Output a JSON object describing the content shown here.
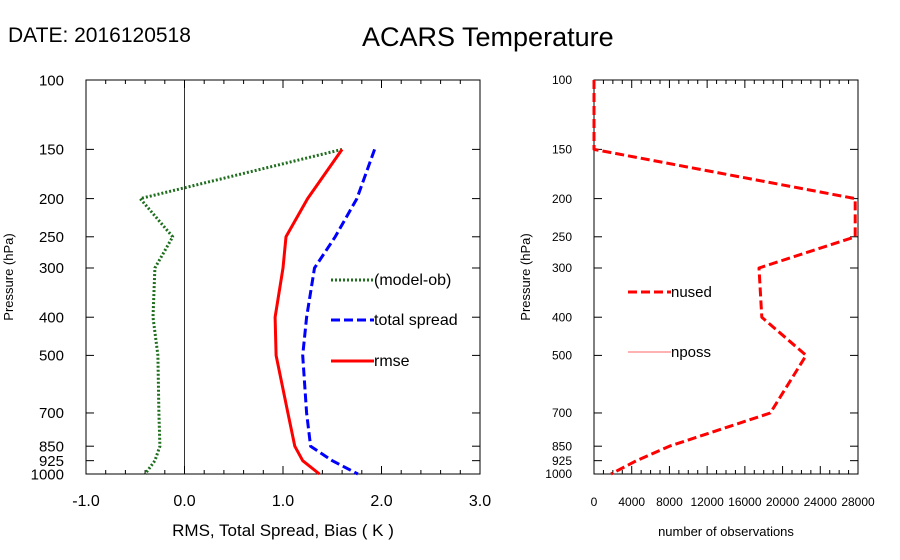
{
  "header": {
    "date_label": "DATE: 2016120518",
    "title": "ACARS Temperature"
  },
  "chart_data": [
    {
      "type": "line",
      "name": "stats-panel",
      "xlabel": "RMS, Total Spread, Bias ( K )",
      "ylabel": "Pressure (hPa)",
      "xlim": [
        -1.0,
        3.0
      ],
      "x_ticks": [
        "-1.0",
        "0.0",
        "1.0",
        "2.0",
        "3.0"
      ],
      "ylim": [
        1000,
        100
      ],
      "y_scale": "log",
      "y_ticks": [
        "100",
        "150",
        "200",
        "250",
        "300",
        "400",
        "500",
        "700",
        "850",
        "925",
        "1000"
      ],
      "y_tick_values": [
        100,
        150,
        200,
        250,
        300,
        400,
        500,
        700,
        850,
        925,
        1000
      ],
      "zero_line": 0,
      "legend_position": "right",
      "series": [
        {
          "name": "(model-ob)",
          "color": "#1e6e1e",
          "dash": "dotted",
          "pressure": [
            150,
            200,
            250,
            300,
            400,
            500,
            700,
            850,
            925,
            1000
          ],
          "values": [
            1.6,
            -0.45,
            -0.12,
            -0.3,
            -0.32,
            -0.27,
            -0.26,
            -0.25,
            -0.3,
            -0.4
          ]
        },
        {
          "name": "total spread",
          "color": "#0000ff",
          "dash": "dashed",
          "pressure": [
            150,
            200,
            250,
            300,
            400,
            500,
            700,
            850,
            925,
            1000
          ],
          "values": [
            1.93,
            1.75,
            1.53,
            1.32,
            1.24,
            1.2,
            1.24,
            1.28,
            1.5,
            1.76
          ]
        },
        {
          "name": "rmse",
          "color": "#ff0000",
          "dash": "solid",
          "pressure": [
            150,
            200,
            250,
            300,
            400,
            500,
            700,
            850,
            925,
            1000
          ],
          "values": [
            1.6,
            1.25,
            1.03,
            1.0,
            0.92,
            0.93,
            1.05,
            1.12,
            1.2,
            1.37
          ]
        }
      ]
    },
    {
      "type": "line",
      "name": "counts-panel",
      "xlabel": "number of observations",
      "ylabel": "Pressure (hPa)",
      "xlim": [
        0,
        28000
      ],
      "x_ticks": [
        "0",
        "4000",
        "8000",
        "12000",
        "16000",
        "20000",
        "24000",
        "28000"
      ],
      "x_tick_values": [
        0,
        4000,
        8000,
        12000,
        16000,
        20000,
        24000,
        28000
      ],
      "ylim": [
        1000,
        100
      ],
      "y_scale": "log",
      "y_ticks": [
        "100",
        "150",
        "200",
        "250",
        "300",
        "400",
        "500",
        "700",
        "850",
        "925",
        "1000"
      ],
      "y_tick_values": [
        100,
        150,
        200,
        250,
        300,
        400,
        500,
        700,
        850,
        925,
        1000
      ],
      "legend_position": "center-left",
      "series": [
        {
          "name": "nused",
          "color": "#ff0000",
          "dash": "dashed",
          "pressure": [
            100,
            150,
            200,
            250,
            300,
            400,
            500,
            700,
            850,
            925,
            1000
          ],
          "values": [
            0,
            0,
            27700,
            27700,
            17500,
            17800,
            22500,
            18700,
            8000,
            4500,
            1800
          ]
        },
        {
          "name": "nposs",
          "color": "#ff6666",
          "dash": "solid",
          "pressure": [],
          "values": []
        }
      ]
    }
  ]
}
